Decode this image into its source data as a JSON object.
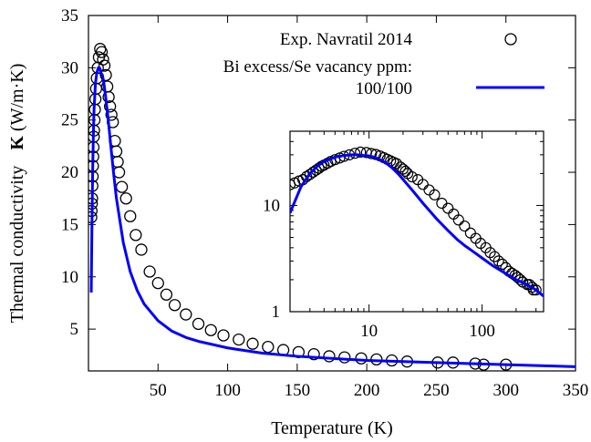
{
  "chart_data": [
    {
      "type": "scatter",
      "title": "",
      "xlabel": "Temperature (K)",
      "ylabel": "Thermal conductivity",
      "ylabel_symbol": "K",
      "ylabel_unit": "(W/m·K)",
      "xlim": [
        0,
        350
      ],
      "ylim": [
        1,
        35
      ],
      "xticks": [
        "50",
        "100",
        "150",
        "200",
        "250",
        "300",
        "350"
      ],
      "yticks": [
        "5",
        "10",
        "15",
        "20",
        "25",
        "30",
        "35"
      ],
      "grid": false,
      "legend_placement": "top-right",
      "legend_header": "Bi excess/Se vacancy ppm:",
      "series": [
        {
          "name": "Exp. Navratil 2014",
          "kind": "markers",
          "marker": "open-circle",
          "color": "#000000",
          "points": [
            [
              2,
              15.7
            ],
            [
              2.2,
              16.3
            ],
            [
              2.4,
              17
            ],
            [
              2.6,
              17.5
            ],
            [
              2.8,
              18.7
            ],
            [
              3,
              19.6
            ],
            [
              3.2,
              20.6
            ],
            [
              3.4,
              21.5
            ],
            [
              3.6,
              22.4
            ],
            [
              3.8,
              23.4
            ],
            [
              4,
              24
            ],
            [
              4.3,
              25
            ],
            [
              4.6,
              26
            ],
            [
              5,
              27
            ],
            [
              5.5,
              28
            ],
            [
              6,
              29
            ],
            [
              6.7,
              30
            ],
            [
              7.5,
              31
            ],
            [
              8.4,
              31.8
            ],
            [
              9.5,
              31.5
            ],
            [
              10.5,
              30.8
            ],
            [
              11.5,
              30.2
            ],
            [
              12.5,
              29.3
            ],
            [
              13.5,
              28.2
            ],
            [
              14.5,
              27.2
            ],
            [
              15.5,
              26.3
            ],
            [
              16.5,
              25.5
            ],
            [
              17.5,
              24.8
            ],
            [
              19,
              23
            ],
            [
              20,
              22
            ],
            [
              21,
              21
            ],
            [
              22,
              20
            ],
            [
              24,
              18.6
            ],
            [
              27,
              17.5
            ],
            [
              30,
              15.8
            ],
            [
              34,
              14
            ],
            [
              38,
              12.6
            ],
            [
              44,
              10.5
            ],
            [
              50,
              9.4
            ],
            [
              56,
              8.3
            ],
            [
              62,
              7.3
            ],
            [
              70,
              6.4
            ],
            [
              79,
              5.5
            ],
            [
              88,
              4.9
            ],
            [
              97,
              4.4
            ],
            [
              108,
              4
            ],
            [
              118,
              3.6
            ],
            [
              129,
              3.3
            ],
            [
              140,
              3
            ],
            [
              151,
              2.8
            ],
            [
              162,
              2.6
            ],
            [
              173,
              2.4
            ],
            [
              184,
              2.3
            ],
            [
              196,
              2.2
            ],
            [
              207,
              2.1
            ],
            [
              218,
              2
            ],
            [
              229,
              1.9
            ],
            [
              251,
              1.8
            ],
            [
              262,
              1.8
            ],
            [
              278,
              1.7
            ],
            [
              284,
              1.6
            ],
            [
              300,
              1.6
            ]
          ]
        },
        {
          "name": "100/100",
          "kind": "line",
          "color": "#0000ff",
          "points": [
            [
              2,
              8.5
            ],
            [
              2.5,
              15
            ],
            [
              3,
              20
            ],
            [
              3.5,
              23.5
            ],
            [
              4,
              26
            ],
            [
              5,
              28.5
            ],
            [
              6,
              29.5
            ],
            [
              7,
              30
            ],
            [
              8,
              30
            ],
            [
              9,
              29.5
            ],
            [
              10,
              29.3
            ],
            [
              11,
              28.6
            ],
            [
              12,
              27.6
            ],
            [
              14,
              25.3
            ],
            [
              16,
              22.6
            ],
            [
              18,
              20
            ],
            [
              20,
              17.6
            ],
            [
              25,
              13.3
            ],
            [
              30,
              10.5
            ],
            [
              35,
              8.7
            ],
            [
              40,
              7.4
            ],
            [
              50,
              5.8
            ],
            [
              60,
              4.8
            ],
            [
              70,
              4.2
            ],
            [
              80,
              3.8
            ],
            [
              100,
              3.2
            ],
            [
              125,
              2.7
            ],
            [
              150,
              2.4
            ],
            [
              200,
              2
            ],
            [
              250,
              1.8
            ],
            [
              300,
              1.6
            ],
            [
              350,
              1.4
            ]
          ]
        }
      ]
    },
    {
      "type": "scatter",
      "title": "",
      "xlabel": "",
      "ylabel": "",
      "x_scale": "log",
      "y_scale": "log",
      "xlim": [
        2,
        350
      ],
      "ylim": [
        1,
        50
      ],
      "xticks": [
        "10",
        "100"
      ],
      "yticks": [
        "1",
        "10"
      ],
      "grid": false,
      "series_ref": "same data as main chart"
    }
  ]
}
